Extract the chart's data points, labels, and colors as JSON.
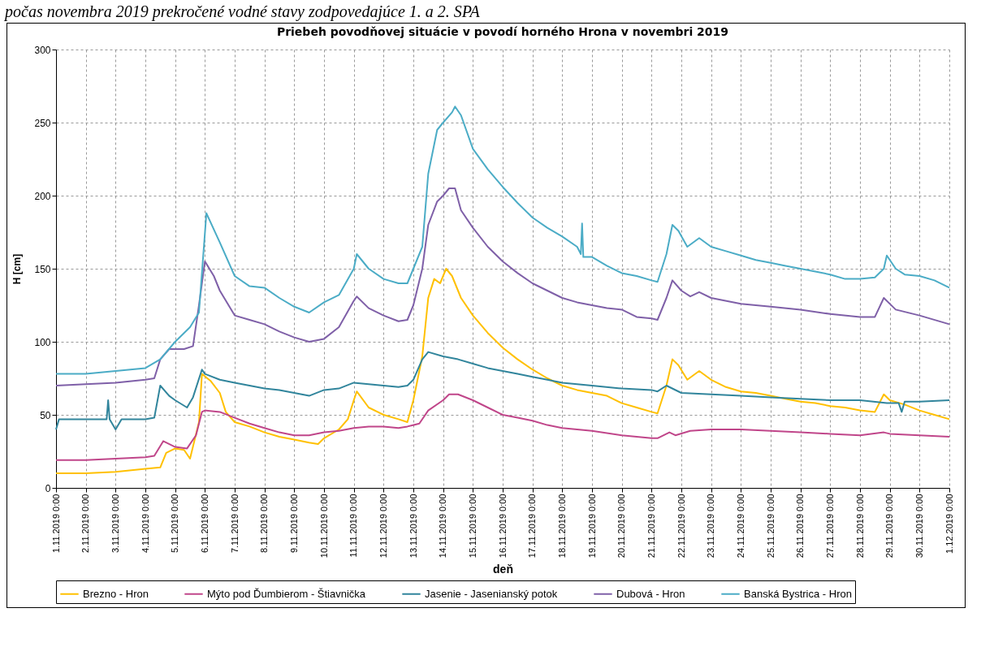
{
  "chart_data": {
    "type": "line",
    "title": "Priebeh povodňovej situácie v povodí horného Hrona v novembri 2019",
    "xlabel": "deň",
    "ylabel": "H [cm]",
    "annotations": [
      "počas novembra 2019 prekročené vodné stavy zodpovedajúce 1. a 2. SPA"
    ],
    "xlim": [
      "2019-11-01T00:00",
      "2019-12-01T00:00"
    ],
    "xticks": [
      {
        "value": "2019-11-01T00:00",
        "label": "1.11.2019 0:00"
      },
      {
        "value": "2019-11-02T00:00",
        "label": "2.11.2019 0:00"
      },
      {
        "value": "2019-11-03T00:00",
        "label": "3.11.2019 0:00"
      },
      {
        "value": "2019-11-04T00:00",
        "label": "4.11.2019 0:00"
      },
      {
        "value": "2019-11-05T00:00",
        "label": "5.11.2019 0:00"
      },
      {
        "value": "2019-11-06T00:00",
        "label": "6.11.2019 0:00"
      },
      {
        "value": "2019-11-07T00:00",
        "label": "7.11.2019 0:00"
      },
      {
        "value": "2019-11-08T00:00",
        "label": "8.11.2019 0:00"
      },
      {
        "value": "2019-11-09T00:00",
        "label": "9.11.2019 0:00"
      },
      {
        "value": "2019-11-10T00:00",
        "label": "10.11.2019 0:00"
      },
      {
        "value": "2019-11-11T00:00",
        "label": "11.11.2019 0:00"
      },
      {
        "value": "2019-11-12T00:00",
        "label": "12.11.2019 0:00"
      },
      {
        "value": "2019-11-13T00:00",
        "label": "13.11.2019 0:00"
      },
      {
        "value": "2019-11-14T00:00",
        "label": "14.11.2019 0:00"
      },
      {
        "value": "2019-11-15T00:00",
        "label": "15.11.2019 0:00"
      },
      {
        "value": "2019-11-16T00:00",
        "label": "16.11.2019 0:00"
      },
      {
        "value": "2019-11-17T00:00",
        "label": "17.11.2019 0:00"
      },
      {
        "value": "2019-11-18T00:00",
        "label": "18.11.2019 0:00"
      },
      {
        "value": "2019-11-19T00:00",
        "label": "19.11.2019 0:00"
      },
      {
        "value": "2019-11-20T00:00",
        "label": "20.11.2019 0:00"
      },
      {
        "value": "2019-11-21T00:00",
        "label": "21.11.2019 0:00"
      },
      {
        "value": "2019-11-22T00:00",
        "label": "22.11.2019 0:00"
      },
      {
        "value": "2019-11-23T00:00",
        "label": "23.11.2019 0:00"
      },
      {
        "value": "2019-11-24T00:00",
        "label": "24.11.2019 0:00"
      },
      {
        "value": "2019-11-25T00:00",
        "label": "25.11.2019 0:00"
      },
      {
        "value": "2019-11-26T00:00",
        "label": "26.11.2019 0:00"
      },
      {
        "value": "2019-11-27T00:00",
        "label": "27.11.2019 0:00"
      },
      {
        "value": "2019-11-28T00:00",
        "label": "28.11.2019 0:00"
      },
      {
        "value": "2019-11-29T00:00",
        "label": "29.11.2019 0:00"
      },
      {
        "value": "2019-11-30T00:00",
        "label": "30.11.2019 0:00"
      },
      {
        "value": "2019-12-01T00:00",
        "label": "1.12.2019 0:00"
      }
    ],
    "ylim": [
      0,
      300
    ],
    "yticks": [
      0,
      50,
      100,
      150,
      200,
      250,
      300
    ],
    "grid": true,
    "legend": "bottom",
    "series": [
      {
        "name": "Brezno - Hron",
        "color": "#ffc000",
        "x": [
          "2019-11-01T00:00",
          "2019-11-02T00:00",
          "2019-11-03T00:00",
          "2019-11-04T00:00",
          "2019-11-04T12:00",
          "2019-11-04T16:48",
          "2019-11-05T00:00",
          "2019-11-05T07:12",
          "2019-11-05T12:00",
          "2019-11-05T19:12",
          "2019-11-05T21:36",
          "2019-11-06T04:48",
          "2019-11-06T12:00",
          "2019-11-06T16:48",
          "2019-11-07T00:00",
          "2019-11-07T12:00",
          "2019-11-08T00:00",
          "2019-11-08T12:00",
          "2019-11-09T00:00",
          "2019-11-09T12:00",
          "2019-11-09T19:12",
          "2019-11-10T00:00",
          "2019-11-10T12:00",
          "2019-11-10T19:12",
          "2019-11-11T00:00",
          "2019-11-11T02:24",
          "2019-11-11T12:00",
          "2019-11-12T00:00",
          "2019-11-12T12:00",
          "2019-11-12T19:12",
          "2019-11-13T00:00",
          "2019-11-13T07:12",
          "2019-11-13T12:00",
          "2019-11-13T16:48",
          "2019-11-13T21:36",
          "2019-11-14T02:24",
          "2019-11-14T07:12",
          "2019-11-14T14:24",
          "2019-11-15T00:00",
          "2019-11-15T12:00",
          "2019-11-16T00:00",
          "2019-11-16T12:00",
          "2019-11-17T00:00",
          "2019-11-17T12:00",
          "2019-11-18T00:00",
          "2019-11-18T12:00",
          "2019-11-19T00:00",
          "2019-11-19T12:00",
          "2019-11-20T00:00",
          "2019-11-20T12:00",
          "2019-11-21T00:00",
          "2019-11-21T04:48",
          "2019-11-21T12:00",
          "2019-11-21T16:48",
          "2019-11-21T21:36",
          "2019-11-22T04:48",
          "2019-11-22T14:24",
          "2019-11-23T00:00",
          "2019-11-23T12:00",
          "2019-11-24T00:00",
          "2019-11-24T12:00",
          "2019-11-25T00:00",
          "2019-11-25T12:00",
          "2019-11-26T00:00",
          "2019-11-26T12:00",
          "2019-11-27T00:00",
          "2019-11-27T12:00",
          "2019-11-28T00:00",
          "2019-11-28T12:00",
          "2019-11-28T19:12",
          "2019-11-29T00:00",
          "2019-11-29T12:00",
          "2019-11-30T00:00",
          "2019-11-30T12:00",
          "2019-12-01T00:00"
        ],
        "values": [
          10,
          10,
          11,
          13,
          14,
          24,
          27,
          26,
          20,
          45,
          78,
          73,
          65,
          52,
          45,
          42,
          38,
          35,
          33,
          31,
          30,
          34,
          40,
          47,
          60,
          66,
          55,
          50,
          47,
          45,
          60,
          90,
          130,
          143,
          140,
          150,
          145,
          130,
          118,
          106,
          96,
          88,
          81,
          75,
          70,
          67,
          65,
          63,
          58,
          55,
          52,
          51,
          70,
          88,
          84,
          74,
          80,
          74,
          69,
          66,
          65,
          63,
          61,
          59,
          58,
          56,
          55,
          53,
          52,
          64,
          60,
          57,
          53,
          50,
          47
        ]
      },
      {
        "name": "Mýto pod Ďumbierom - Štiavnička",
        "color": "#c0468a",
        "x": [
          "2019-11-01T00:00",
          "2019-11-02T00:00",
          "2019-11-03T00:00",
          "2019-11-04T00:00",
          "2019-11-04T07:12",
          "2019-11-04T14:24",
          "2019-11-05T00:00",
          "2019-11-05T09:36",
          "2019-11-05T16:48",
          "2019-11-05T21:36",
          "2019-11-06T00:00",
          "2019-11-06T12:00",
          "2019-11-07T00:00",
          "2019-11-07T12:00",
          "2019-11-08T00:00",
          "2019-11-08T12:00",
          "2019-11-09T00:00",
          "2019-11-09T12:00",
          "2019-11-10T00:00",
          "2019-11-10T12:00",
          "2019-11-11T00:00",
          "2019-11-11T12:00",
          "2019-11-12T00:00",
          "2019-11-12T12:00",
          "2019-11-12T19:12",
          "2019-11-13T04:48",
          "2019-11-13T12:00",
          "2019-11-14T00:00",
          "2019-11-14T04:48",
          "2019-11-14T12:00",
          "2019-11-15T00:00",
          "2019-11-15T12:00",
          "2019-11-16T00:00",
          "2019-11-16T12:00",
          "2019-11-17T00:00",
          "2019-11-17T12:00",
          "2019-11-18T00:00",
          "2019-11-19T00:00",
          "2019-11-20T00:00",
          "2019-11-21T00:00",
          "2019-11-21T04:48",
          "2019-11-21T14:24",
          "2019-11-21T19:12",
          "2019-11-22T07:12",
          "2019-11-23T00:00",
          "2019-11-24T00:00",
          "2019-11-25T00:00",
          "2019-11-26T00:00",
          "2019-11-27T00:00",
          "2019-11-28T00:00",
          "2019-11-28T19:12",
          "2019-11-29T00:00",
          "2019-11-30T00:00",
          "2019-12-01T00:00"
        ],
        "values": [
          19,
          19,
          20,
          21,
          22,
          32,
          28,
          27,
          36,
          52,
          53,
          52,
          48,
          44,
          41,
          38,
          36,
          36,
          38,
          39,
          41,
          42,
          42,
          41,
          42,
          44,
          53,
          60,
          64,
          64,
          60,
          55,
          50,
          48,
          46,
          43,
          41,
          39,
          36,
          34,
          34,
          38,
          36,
          39,
          40,
          40,
          39,
          38,
          37,
          36,
          38,
          37,
          36,
          35
        ]
      },
      {
        "name": "Jasenie - Jasenianský potok",
        "color": "#31859c",
        "x": [
          "2019-11-01T00:00",
          "2019-11-01T02:24",
          "2019-11-02T00:00",
          "2019-11-02T16:48",
          "2019-11-02T18:00",
          "2019-11-02T19:12",
          "2019-11-03T00:00",
          "2019-11-03T04:48",
          "2019-11-04T00:00",
          "2019-11-04T07:12",
          "2019-11-04T12:00",
          "2019-11-04T19:12",
          "2019-11-05T00:00",
          "2019-11-05T09:36",
          "2019-11-05T14:24",
          "2019-11-05T21:36",
          "2019-11-06T00:00",
          "2019-11-06T12:00",
          "2019-11-07T00:00",
          "2019-11-07T12:00",
          "2019-11-08T00:00",
          "2019-11-08T12:00",
          "2019-11-09T00:00",
          "2019-11-09T12:00",
          "2019-11-10T00:00",
          "2019-11-10T12:00",
          "2019-11-11T00:00",
          "2019-11-11T12:00",
          "2019-11-12T00:00",
          "2019-11-12T12:00",
          "2019-11-12T19:12",
          "2019-11-13T00:00",
          "2019-11-13T07:12",
          "2019-11-13T12:00",
          "2019-11-14T00:00",
          "2019-11-14T12:00",
          "2019-11-15T00:00",
          "2019-11-15T12:00",
          "2019-11-16T00:00",
          "2019-11-16T12:00",
          "2019-11-17T00:00",
          "2019-11-17T12:00",
          "2019-11-18T00:00",
          "2019-11-18T12:00",
          "2019-11-19T00:00",
          "2019-11-20T00:00",
          "2019-11-21T00:00",
          "2019-11-21T04:48",
          "2019-11-21T12:00",
          "2019-11-22T00:00",
          "2019-11-23T00:00",
          "2019-11-24T00:00",
          "2019-11-25T00:00",
          "2019-11-26T00:00",
          "2019-11-27T00:00",
          "2019-11-28T00:00",
          "2019-11-28T21:36",
          "2019-11-29T07:12",
          "2019-11-29T09:36",
          "2019-11-29T12:00",
          "2019-11-30T00:00",
          "2019-12-01T00:00"
        ],
        "values": [
          40,
          47,
          47,
          47,
          60,
          47,
          40,
          47,
          47,
          48,
          70,
          63,
          60,
          55,
          62,
          81,
          78,
          74,
          72,
          70,
          68,
          67,
          65,
          63,
          67,
          68,
          72,
          71,
          70,
          69,
          70,
          74,
          88,
          93,
          90,
          88,
          85,
          82,
          80,
          78,
          76,
          74,
          72,
          71,
          70,
          68,
          67,
          66,
          70,
          65,
          64,
          63,
          62,
          61,
          60,
          60,
          58,
          58,
          52,
          59,
          59,
          60
        ]
      },
      {
        "name": "Dubová - Hron",
        "color": "#7f60a8",
        "x": [
          "2019-11-01T00:00",
          "2019-11-02T00:00",
          "2019-11-03T00:00",
          "2019-11-04T00:00",
          "2019-11-04T07:12",
          "2019-11-04T12:00",
          "2019-11-04T19:12",
          "2019-11-05T07:12",
          "2019-11-05T14:24",
          "2019-11-05T19:12",
          "2019-11-06T00:00",
          "2019-11-06T07:12",
          "2019-11-06T12:00",
          "2019-11-07T00:00",
          "2019-11-07T12:00",
          "2019-11-08T00:00",
          "2019-11-08T12:00",
          "2019-11-09T00:00",
          "2019-11-09T12:00",
          "2019-11-10T00:00",
          "2019-11-10T12:00",
          "2019-11-11T00:00",
          "2019-11-11T02:24",
          "2019-11-11T12:00",
          "2019-11-12T00:00",
          "2019-11-12T12:00",
          "2019-11-12T19:12",
          "2019-11-13T00:00",
          "2019-11-13T07:12",
          "2019-11-13T12:00",
          "2019-11-13T19:12",
          "2019-11-14T00:00",
          "2019-11-14T04:48",
          "2019-11-14T09:36",
          "2019-11-14T14:24",
          "2019-11-15T00:00",
          "2019-11-15T12:00",
          "2019-11-16T00:00",
          "2019-11-16T12:00",
          "2019-11-17T00:00",
          "2019-11-17T12:00",
          "2019-11-18T00:00",
          "2019-11-18T12:00",
          "2019-11-19T00:00",
          "2019-11-19T12:00",
          "2019-11-20T00:00",
          "2019-11-20T12:00",
          "2019-11-21T00:00",
          "2019-11-21T04:48",
          "2019-11-21T12:00",
          "2019-11-21T16:48",
          "2019-11-22T00:00",
          "2019-11-22T07:12",
          "2019-11-22T14:24",
          "2019-11-23T00:00",
          "2019-11-24T00:00",
          "2019-11-25T00:00",
          "2019-11-26T00:00",
          "2019-11-27T00:00",
          "2019-11-28T00:00",
          "2019-11-28T12:00",
          "2019-11-28T19:12",
          "2019-11-29T04:48",
          "2019-11-30T00:00",
          "2019-12-01T00:00"
        ],
        "values": [
          70,
          71,
          72,
          74,
          75,
          88,
          95,
          95,
          97,
          125,
          155,
          145,
          135,
          118,
          115,
          112,
          107,
          103,
          100,
          102,
          110,
          128,
          131,
          123,
          118,
          114,
          115,
          125,
          150,
          180,
          196,
          200,
          205,
          205,
          190,
          178,
          165,
          155,
          147,
          140,
          135,
          130,
          127,
          125,
          123,
          122,
          117,
          116,
          115,
          130,
          142,
          135,
          131,
          134,
          130,
          126,
          124,
          122,
          119,
          117,
          117,
          130,
          122,
          118,
          112
        ]
      },
      {
        "name": "Banská Bystrica - Hron",
        "color": "#4bacc6",
        "x": [
          "2019-11-01T00:00",
          "2019-11-02T00:00",
          "2019-11-03T00:00",
          "2019-11-04T00:00",
          "2019-11-04T12:00",
          "2019-11-05T00:00",
          "2019-11-05T12:00",
          "2019-11-05T19:12",
          "2019-11-06T01:12",
          "2019-11-06T12:00",
          "2019-11-07T00:00",
          "2019-11-07T12:00",
          "2019-11-08T00:00",
          "2019-11-08T12:00",
          "2019-11-09T00:00",
          "2019-11-09T12:00",
          "2019-11-10T00:00",
          "2019-11-10T12:00",
          "2019-11-11T00:00",
          "2019-11-11T02:24",
          "2019-11-11T12:00",
          "2019-11-12T00:00",
          "2019-11-12T12:00",
          "2019-11-12T19:12",
          "2019-11-13T00:00",
          "2019-11-13T07:12",
          "2019-11-13T12:00",
          "2019-11-13T19:12",
          "2019-11-14T00:00",
          "2019-11-14T07:12",
          "2019-11-14T09:36",
          "2019-11-14T14:24",
          "2019-11-15T00:00",
          "2019-11-15T12:00",
          "2019-11-16T00:00",
          "2019-11-16T12:00",
          "2019-11-17T00:00",
          "2019-11-17T12:00",
          "2019-11-18T00:00",
          "2019-11-18T12:00",
          "2019-11-18T15:00",
          "2019-11-18T16:00",
          "2019-11-18T17:00",
          "2019-11-19T00:00",
          "2019-11-19T12:00",
          "2019-11-20T00:00",
          "2019-11-20T12:00",
          "2019-11-21T00:00",
          "2019-11-21T04:48",
          "2019-11-21T12:00",
          "2019-11-21T16:48",
          "2019-11-21T21:36",
          "2019-11-22T04:48",
          "2019-11-22T14:24",
          "2019-11-23T00:00",
          "2019-11-23T12:00",
          "2019-11-24T00:00",
          "2019-11-24T12:00",
          "2019-11-25T00:00",
          "2019-11-25T12:00",
          "2019-11-26T00:00",
          "2019-11-26T12:00",
          "2019-11-27T00:00",
          "2019-11-27T12:00",
          "2019-11-28T00:00",
          "2019-11-28T12:00",
          "2019-11-28T19:12",
          "2019-11-28T21:36",
          "2019-11-29T04:48",
          "2019-11-29T12:00",
          "2019-11-30T00:00",
          "2019-11-30T12:00",
          "2019-12-01T00:00"
        ],
        "values": [
          78,
          78,
          80,
          82,
          88,
          100,
          110,
          120,
          188,
          168,
          145,
          138,
          137,
          130,
          124,
          120,
          127,
          132,
          150,
          160,
          150,
          143,
          140,
          140,
          150,
          165,
          215,
          245,
          250,
          257,
          261,
          255,
          232,
          218,
          206,
          195,
          185,
          178,
          172,
          165,
          160,
          181,
          158,
          158,
          152,
          147,
          145,
          142,
          141,
          160,
          180,
          176,
          165,
          171,
          165,
          162,
          159,
          156,
          154,
          152,
          150,
          148,
          146,
          143,
          143,
          144,
          150,
          159,
          150,
          146,
          145,
          142,
          137
        ]
      }
    ]
  }
}
